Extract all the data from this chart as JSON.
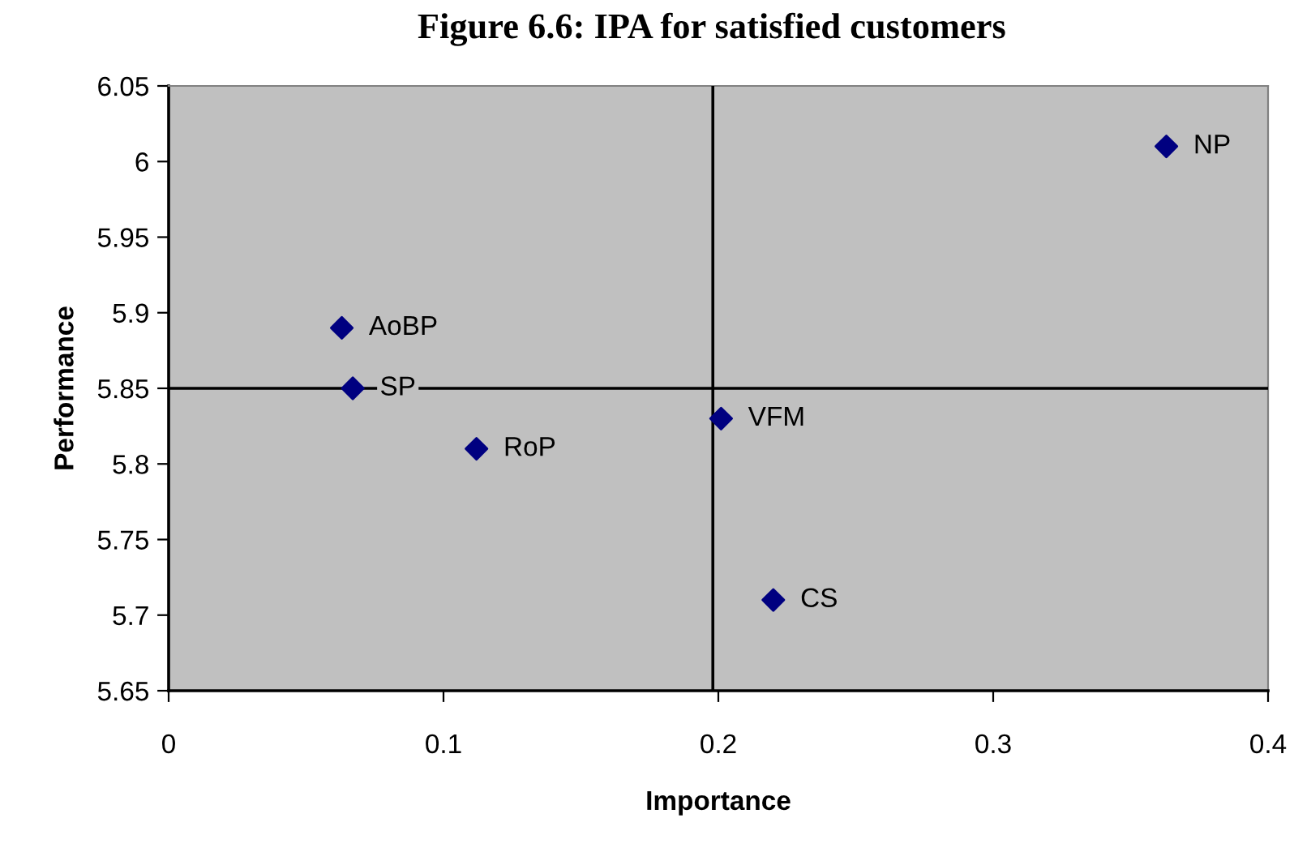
{
  "chart_data": {
    "type": "scatter",
    "title": "Figure 6.6: IPA for satisfied customers",
    "xlabel": "Importance",
    "ylabel": "Performance",
    "x": [
      0.363,
      0.063,
      0.067,
      0.112,
      0.201,
      0.22
    ],
    "series": [
      {
        "color": "#000080",
        "values": [
          6.01,
          5.89,
          5.85,
          5.81,
          5.83,
          5.71
        ]
      }
    ],
    "annotations": [
      {
        "text": "NP",
        "x": 0.363,
        "y": 6.01
      },
      {
        "text": "AoBP",
        "x": 0.063,
        "y": 5.89
      },
      {
        "text": "SP",
        "x": 0.067,
        "y": 5.85
      },
      {
        "text": "RoP",
        "x": 0.112,
        "y": 5.81
      },
      {
        "text": "VFM",
        "x": 0.201,
        "y": 5.83
      },
      {
        "text": "CS",
        "x": 0.22,
        "y": 5.71
      }
    ],
    "ref_lines": [
      {
        "axis": "x",
        "value": 0.198,
        "color": "#000000"
      },
      {
        "axis": "y",
        "value": 5.85,
        "color": "#000000"
      }
    ],
    "xlim": [
      0,
      0.4
    ],
    "ylim": [
      5.65,
      6.05
    ],
    "xticks": [
      0,
      0.1,
      0.2,
      0.3,
      0.4
    ],
    "yticks": [
      5.65,
      5.7,
      5.75,
      5.8,
      5.85,
      5.9,
      5.95,
      6,
      6.05
    ],
    "marker": "diamond",
    "grid": false,
    "legend": false
  }
}
